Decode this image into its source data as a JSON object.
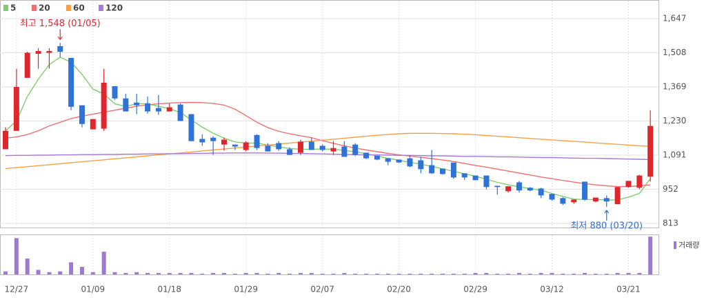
{
  "chart_data": {
    "type": "candlestick",
    "categories": [
      null,
      "12/27",
      null,
      null,
      null,
      null,
      null,
      null,
      "01/09",
      null,
      null,
      null,
      null,
      null,
      null,
      "01/18",
      null,
      null,
      null,
      null,
      null,
      null,
      "01/29",
      null,
      null,
      null,
      null,
      null,
      null,
      "02/07",
      null,
      null,
      null,
      null,
      null,
      null,
      "02/20",
      null,
      null,
      null,
      null,
      null,
      null,
      "02/29",
      null,
      null,
      null,
      null,
      null,
      null,
      "03/12",
      null,
      null,
      null,
      null,
      null,
      null,
      "03/21",
      null,
      null
    ],
    "open": [
      1115,
      1190,
      1406,
      1504,
      1508,
      1535,
      1487,
      1294,
      1196,
      1199,
      1372,
      1322,
      1305,
      1302,
      1283,
      1269,
      1297,
      1258,
      1157,
      1162,
      1134,
      1134,
      1112,
      1173,
      1129,
      1140,
      1115,
      1101,
      1146,
      1129,
      1106,
      1126,
      1134,
      1101,
      1089,
      1078,
      1073,
      1078,
      1070,
      1050,
      1036,
      1061,
      1017,
      1008,
      1008,
      966,
      944,
      980,
      958,
      955,
      933,
      916,
      899,
      983,
      902,
      916,
      891,
      961,
      958,
      1003
    ],
    "high": [
      1204,
      1443,
      1512,
      1527,
      1527,
      1548,
      1487,
      1294,
      1238,
      1443,
      1372,
      1341,
      1341,
      1330,
      1336,
      1302,
      1302,
      1258,
      1176,
      1168,
      1162,
      1134,
      1148,
      1176,
      1140,
      1148,
      1123,
      1154,
      1162,
      1134,
      1148,
      1148,
      1140,
      1101,
      1089,
      1078,
      1073,
      1089,
      1084,
      1112,
      1036,
      1061,
      1017,
      1008,
      1008,
      966,
      964,
      986,
      961,
      958,
      933,
      919,
      910,
      983,
      918,
      927,
      961,
      986,
      1011,
      1274
    ],
    "low": [
      1115,
      1190,
      1406,
      1443,
      1443,
      1490,
      1274,
      1204,
      1196,
      1190,
      1316,
      1269,
      1258,
      1260,
      1255,
      1269,
      1230,
      1148,
      1129,
      1092,
      1109,
      1112,
      1106,
      1112,
      1106,
      1109,
      1092,
      1092,
      1112,
      1106,
      1092,
      1084,
      1087,
      1075,
      1070,
      1050,
      1059,
      1042,
      1017,
      1014,
      1011,
      994,
      989,
      989,
      952,
      930,
      938,
      938,
      944,
      916,
      905,
      888,
      893,
      905,
      899,
      880,
      891,
      958,
      952,
      983
    ],
    "close": [
      1190,
      1369,
      1508,
      1515,
      1515,
      1512,
      1288,
      1218,
      1238,
      1386,
      1322,
      1269,
      1294,
      1269,
      1269,
      1286,
      1230,
      1148,
      1143,
      1148,
      1154,
      1126,
      1143,
      1120,
      1106,
      1115,
      1092,
      1146,
      1112,
      1112,
      1120,
      1084,
      1092,
      1078,
      1073,
      1064,
      1061,
      1045,
      1034,
      1017,
      1014,
      1000,
      1000,
      989,
      961,
      961,
      964,
      947,
      947,
      927,
      910,
      893,
      910,
      910,
      918,
      902,
      961,
      986,
      1008,
      1210
    ],
    "up_color": "#e0262d",
    "down_color": "#2f72d8",
    "series": [
      {
        "name": "5",
        "color": "#7ccf6a",
        "values": [
          1190,
          1230,
          1330,
          1400,
          1460,
          1490,
          1470,
          1420,
          1360,
          1340,
          1300,
          1290,
          1300,
          1300,
          1290,
          1280,
          1265,
          1235,
          1205,
          1180,
          1160,
          1145,
          1140,
          1140,
          1132,
          1125,
          1118,
          1115,
          1115,
          1116,
          1115,
          1110,
          1105,
          1097,
          1087,
          1078,
          1070,
          1062,
          1054,
          1045,
          1035,
          1025,
          1015,
          1005,
          993,
          980,
          970,
          962,
          955,
          948,
          935,
          922,
          912,
          910,
          910,
          908,
          908,
          920,
          935,
          995
        ]
      },
      {
        "name": "20",
        "color": "#f07070",
        "values": [
          1160,
          1165,
          1175,
          1190,
          1210,
          1225,
          1240,
          1250,
          1258,
          1266,
          1274,
          1282,
          1290,
          1296,
          1300,
          1303,
          1305,
          1306,
          1305,
          1302,
          1295,
          1278,
          1252,
          1225,
          1203,
          1188,
          1178,
          1170,
          1162,
          1150,
          1139,
          1129,
          1120,
          1112,
          1105,
          1098,
          1092,
          1087,
          1082,
          1077,
          1071,
          1065,
          1057,
          1049,
          1042,
          1034,
          1026,
          1018,
          1010,
          1002,
          995,
          988,
          981,
          975,
          970,
          966,
          963,
          963,
          966,
          970
        ]
      },
      {
        "name": "60",
        "color": "#f5a04a",
        "values": [
          1036,
          1040,
          1044,
          1048,
          1052,
          1056,
          1060,
          1064,
          1068,
          1072,
          1076,
          1080,
          1084,
          1088,
          1092,
          1096,
          1100,
          1104,
          1108,
          1112,
          1116,
          1120,
          1124,
          1128,
          1132,
          1136,
          1140,
          1144,
          1148,
          1152,
          1156,
          1160,
          1164,
          1168,
          1172,
          1175,
          1178,
          1180,
          1180,
          1180,
          1179,
          1178,
          1176,
          1174,
          1171,
          1168,
          1165,
          1162,
          1159,
          1156,
          1153,
          1150,
          1147,
          1144,
          1141,
          1138,
          1135,
          1132,
          1129,
          1127
        ]
      },
      {
        "name": "120",
        "color": "#a779d8",
        "values": [
          1089,
          1090,
          1090,
          1091,
          1091,
          1092,
          1092,
          1093,
          1093,
          1094,
          1094,
          1095,
          1095,
          1096,
          1096,
          1097,
          1097,
          1098,
          1098,
          1099,
          1099,
          1100,
          1100,
          1100,
          1099,
          1099,
          1098,
          1098,
          1097,
          1096,
          1095,
          1094,
          1093,
          1092,
          1092,
          1091,
          1090,
          1090,
          1089,
          1088,
          1088,
          1087,
          1086,
          1086,
          1085,
          1084,
          1084,
          1083,
          1082,
          1081,
          1081,
          1080,
          1079,
          1078,
          1078,
          1077,
          1076,
          1075,
          1074,
          1073
        ]
      }
    ],
    "ylim": [
      796,
      1709
    ],
    "yticks": [
      {
        "value": 1647,
        "label": "1,647"
      },
      {
        "value": 1508,
        "label": "1,508"
      },
      {
        "value": 1369,
        "label": "1,369"
      },
      {
        "value": 1230,
        "label": "1,230"
      },
      {
        "value": 1091,
        "label": "1,091"
      },
      952,
      813
    ],
    "grid": true,
    "volume_label": "거래량",
    "volume_color": "#9b7ad0",
    "volume": [
      4,
      48,
      21,
      6,
      3,
      4,
      16,
      10,
      3,
      30,
      3,
      2,
      3,
      2,
      2,
      2,
      2,
      2,
      1,
      2,
      2,
      1,
      2,
      2,
      1,
      2,
      1,
      2,
      2,
      1,
      1,
      2,
      1,
      1,
      1,
      1,
      1,
      1,
      1,
      1,
      1,
      1,
      1,
      2,
      2,
      1,
      1,
      2,
      1,
      2,
      2,
      1,
      1,
      2,
      1,
      1,
      2,
      2,
      2,
      50
    ],
    "volume_ylim": [
      0,
      52
    ],
    "annotations": [
      {
        "text": "최고 1,548 (01/05)",
        "value": 1548,
        "color": "#e0262d"
      },
      {
        "text": "최저 880 (03/20)",
        "value": 880,
        "color": "#2f72d8"
      }
    ]
  }
}
